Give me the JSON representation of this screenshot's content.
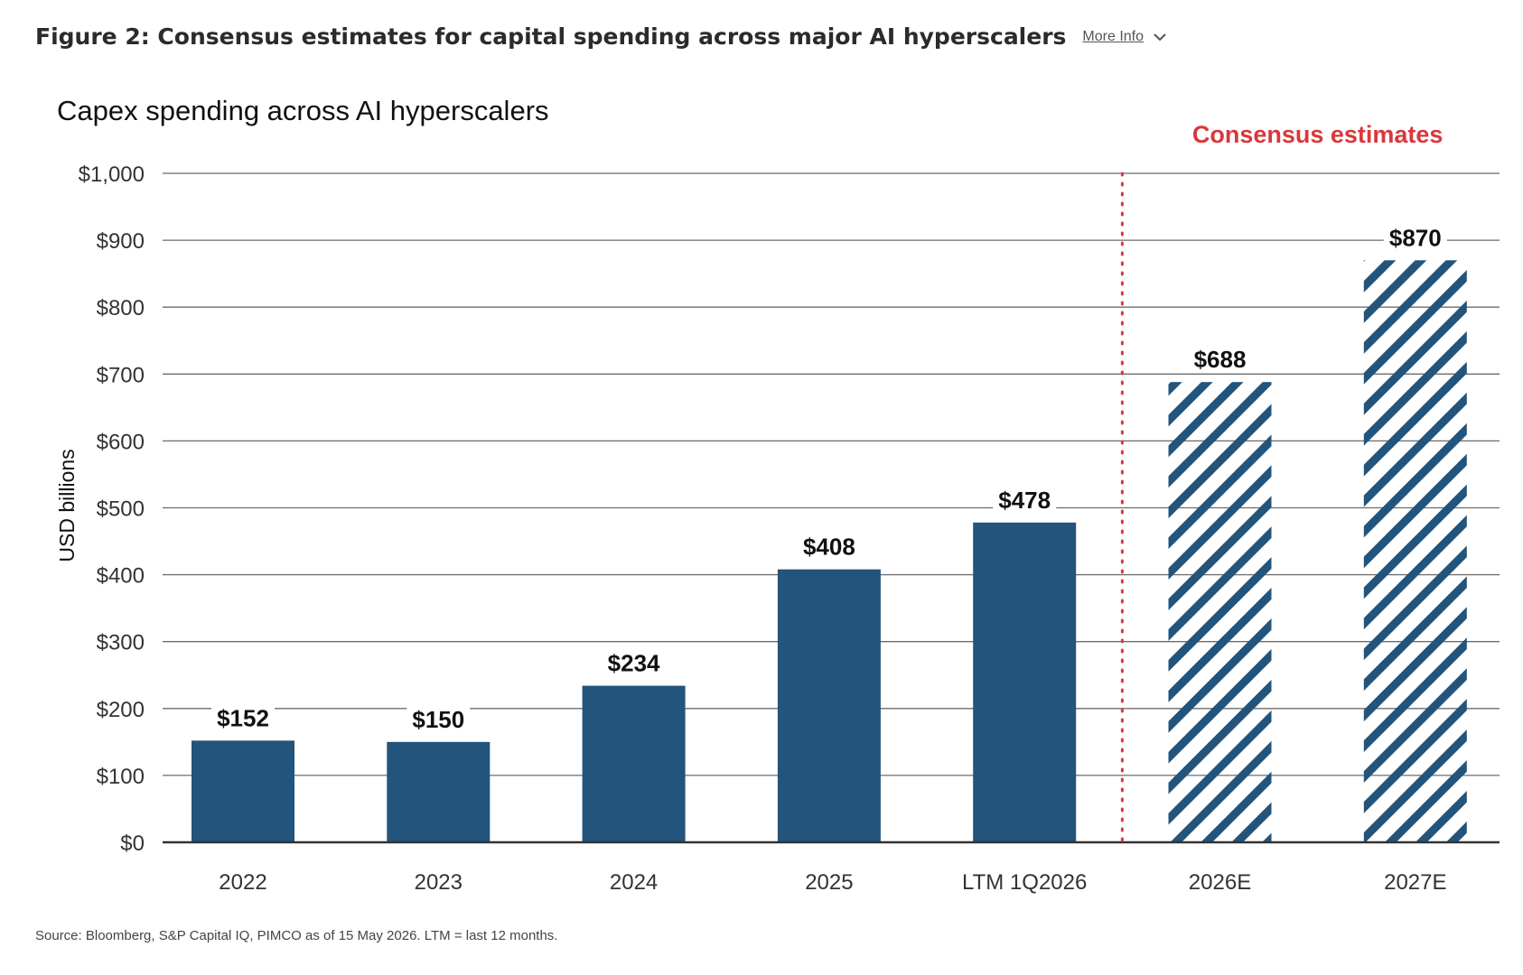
{
  "figure": {
    "title": "Figure 2: Consensus estimates for capital spending across major AI hyperscalers",
    "more_info_label": "More Info",
    "more_info_icon": "chevron-down-icon"
  },
  "chart_data": {
    "type": "bar",
    "title": "Capex spending across AI hyperscalers",
    "ylabel": "USD billions",
    "xlabel": "",
    "ylim": [
      0,
      1000
    ],
    "yticks": [
      "$0",
      "$100",
      "$200",
      "$300",
      "$400",
      "$500",
      "$600",
      "$700",
      "$800",
      "$900",
      "$1,000"
    ],
    "categories": [
      "2022",
      "2023",
      "2024",
      "2025",
      "LTM 1Q2026",
      "2026E",
      "2027E"
    ],
    "values": [
      152,
      150,
      234,
      408,
      478,
      688,
      870
    ],
    "value_labels": [
      "$152",
      "$150",
      "$234",
      "$408",
      "$478",
      "$688",
      "$870"
    ],
    "estimate_flags": [
      false,
      false,
      false,
      false,
      false,
      true,
      true
    ],
    "annotation": "Consensus estimates",
    "grid": true,
    "colors": {
      "bar": "#23547b",
      "hatch": "#23547b",
      "annotation": "#d9373d",
      "divider": "#d9373d",
      "grid": "#6b6b6b"
    }
  },
  "source_note": "Source: Bloomberg, S&P Capital IQ, PIMCO as of 15 May 2026. LTM = last 12 months."
}
